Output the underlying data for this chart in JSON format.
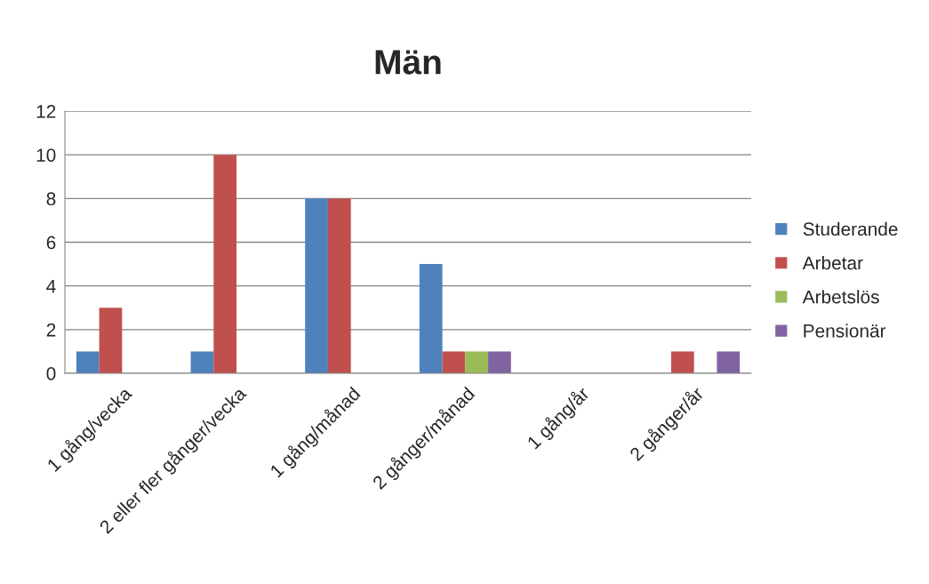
{
  "chart_data": {
    "type": "bar",
    "title": "Män",
    "categories": [
      "1 gång/vecka",
      "2 eller fler gånger/vecka",
      "1 gång/månad",
      "2 gånger/månad",
      "1 gång/år",
      "2 gånger/år"
    ],
    "series": [
      {
        "name": "Studerande",
        "color": "#4f81bd",
        "values": [
          1,
          1,
          8,
          5,
          null,
          null
        ]
      },
      {
        "name": "Arbetar",
        "color": "#c0504d",
        "values": [
          3,
          10,
          8,
          1,
          null,
          1
        ]
      },
      {
        "name": "Arbetslös",
        "color": "#9bbb59",
        "values": [
          null,
          null,
          null,
          1,
          null,
          null
        ]
      },
      {
        "name": "Pensionär",
        "color": "#8064a2",
        "values": [
          null,
          null,
          null,
          1,
          null,
          1
        ]
      }
    ],
    "ylim": [
      0,
      12
    ],
    "yticks": [
      0,
      2,
      4,
      6,
      8,
      10,
      12
    ],
    "grid": "y",
    "legend": "right"
  }
}
